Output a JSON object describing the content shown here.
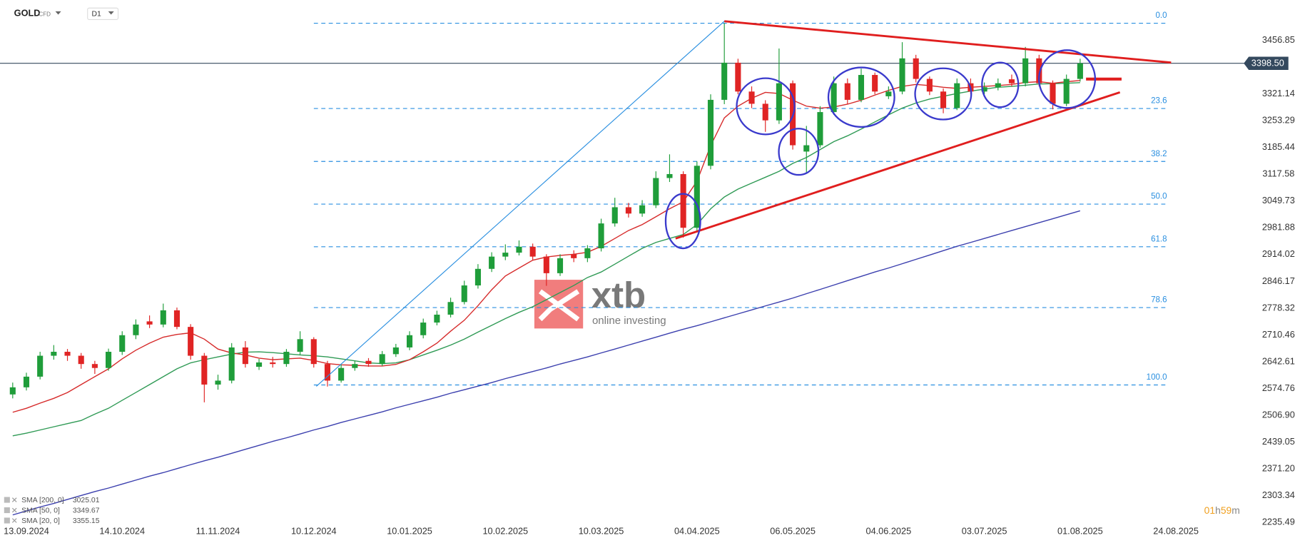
{
  "header": {
    "symbol": "GOLD",
    "instrument_type": "CFD",
    "timeframe": "D1"
  },
  "watermark": {
    "brand": "xtb",
    "tagline": "online investing"
  },
  "countdown": [
    "01",
    "h",
    "59",
    "m"
  ],
  "chart_data": {
    "type": "candlestick",
    "up_color": "#1f9d3a",
    "down_color": "#e02424",
    "ylim": [
      2208.3,
      3557.3
    ],
    "yticks": [
      3456.85,
      3321.14,
      3253.29,
      3185.44,
      3117.58,
      3049.73,
      2981.88,
      2914.02,
      2846.17,
      2778.32,
      2710.46,
      2642.61,
      2574.76,
      {
        "value": 2506.9,
        "label": "2506.90"
      },
      2439.05,
      {
        "value": 2371.2,
        "label": "2371.20"
      },
      2303.34,
      2235.49
    ],
    "last_price": {
      "value": 3398.5,
      "label": "3398.50"
    },
    "categories": [
      null,
      "13.09.2024",
      null,
      null,
      null,
      null,
      null,
      null,
      "14.10.2024",
      null,
      null,
      null,
      null,
      null,
      null,
      "11.11.2024",
      null,
      null,
      null,
      null,
      null,
      null,
      "10.12.2024",
      null,
      null,
      null,
      null,
      null,
      null,
      "10.01.2025",
      null,
      null,
      null,
      null,
      null,
      null,
      "10.02.2025",
      null,
      null,
      null,
      null,
      null,
      null,
      "10.03.2025",
      null,
      null,
      null,
      null,
      null,
      null,
      "04.04.2025",
      null,
      null,
      null,
      null,
      null,
      null,
      "06.05.2025",
      null,
      null,
      null,
      null,
      null,
      null,
      "04.06.2025",
      null,
      null,
      null,
      null,
      null,
      null,
      "03.07.2025",
      null,
      null,
      null,
      null,
      null,
      null,
      "01.08.2025",
      null,
      null,
      null,
      null,
      null,
      null,
      "24.08.2025",
      null
    ],
    "open": [
      2560,
      2578,
      2605,
      2658,
      2668,
      2658,
      2637,
      2627,
      2668,
      2710,
      2745,
      2737,
      2773,
      2731,
      2658,
      2585,
      2595,
      2679,
      2630,
      2641,
      2637,
      2668,
      2700,
      2637,
      2595,
      2627,
      2645,
      2637,
      2662,
      2679,
      2710,
      2742,
      2762,
      2794,
      2836,
      2878,
      2909,
      2919,
      2934,
      2909,
      2867,
      2915,
      2905,
      2930,
      2993,
      3034,
      3018,
      3039,
      3108,
      3118,
      2982,
      3139,
      3306,
      3400,
      3327,
      3296,
      3254,
      3348,
      3175,
      3191,
      3275,
      3348,
      3306,
      3369,
      3315,
      3327,
      3411,
      3359,
      3327,
      3285,
      3348,
      3327,
      3338,
      3358,
      3348,
      3411,
      3348,
      3296,
      3359,
      null,
      null,
      null,
      null,
      null,
      null,
      null,
      null
    ],
    "high": [
      2590,
      2615,
      2668,
      2685,
      2675,
      2665,
      2645,
      2676,
      2720,
      2750,
      2760,
      2790,
      2780,
      2738,
      2665,
      2610,
      2690,
      2695,
      2650,
      2655,
      2675,
      2720,
      2705,
      2645,
      2635,
      2645,
      2652,
      2670,
      2688,
      2720,
      2752,
      2772,
      2805,
      2848,
      2890,
      2920,
      2940,
      2950,
      2942,
      2915,
      2915,
      2925,
      2938,
      3005,
      3058,
      3045,
      3052,
      3125,
      3168,
      3125,
      3150,
      3320,
      3500,
      3410,
      3340,
      3305,
      3436,
      3355,
      3240,
      3290,
      3365,
      3360,
      3385,
      3375,
      3340,
      3452,
      3420,
      3365,
      3335,
      3360,
      3360,
      3350,
      3360,
      3370,
      3440,
      3420,
      3355,
      3370,
      3410,
      null,
      null,
      null,
      null,
      null,
      null,
      null,
      null
    ],
    "low": [
      2550,
      2570,
      2598,
      2648,
      2645,
      2625,
      2612,
      2620,
      2660,
      2700,
      2728,
      2730,
      2725,
      2648,
      2540,
      2572,
      2588,
      2628,
      2622,
      2628,
      2630,
      2660,
      2628,
      2580,
      2590,
      2620,
      2630,
      2632,
      2655,
      2672,
      2702,
      2735,
      2755,
      2788,
      2828,
      2870,
      2900,
      2912,
      2900,
      2835,
      2860,
      2895,
      2895,
      2922,
      2985,
      3008,
      3010,
      3032,
      3098,
      2957,
      2975,
      3130,
      3295,
      3320,
      3285,
      3225,
      3245,
      3180,
      3120,
      3185,
      3268,
      3295,
      3300,
      3320,
      3308,
      3320,
      3350,
      3318,
      3272,
      3280,
      3320,
      3320,
      3330,
      3340,
      3340,
      3340,
      3282,
      3290,
      3352,
      null,
      null,
      null,
      null,
      null,
      null,
      null,
      null
    ],
    "close": [
      2578,
      2605,
      2658,
      2668,
      2658,
      2637,
      2627,
      2668,
      2710,
      2737,
      2737,
      2773,
      2731,
      2658,
      2585,
      2595,
      2679,
      2637,
      2641,
      2637,
      2668,
      2700,
      2637,
      2595,
      2627,
      2637,
      2637,
      2662,
      2679,
      2710,
      2742,
      2762,
      2794,
      2836,
      2878,
      2909,
      2919,
      2934,
      2909,
      2867,
      2905,
      2905,
      2930,
      2993,
      3034,
      3018,
      3039,
      3108,
      3118,
      2982,
      3139,
      3306,
      3400,
      3327,
      3296,
      3254,
      3348,
      3191,
      3191,
      3275,
      3348,
      3306,
      3369,
      3327,
      3327,
      3411,
      3359,
      3327,
      3285,
      3348,
      3327,
      3338,
      3348,
      3348,
      3411,
      3348,
      3296,
      3359,
      3398.5,
      null,
      null,
      null,
      null,
      null,
      null,
      null,
      null
    ],
    "series": [
      {
        "name": "SMA [200, 0]",
        "color": "#3b3fae",
        "values": [
          2255,
          2265,
          2275,
          2284,
          2294,
          2304,
          2314,
          2323,
          2333,
          2343,
          2353,
          2362,
          2372,
          2382,
          2392,
          2401,
          2411,
          2421,
          2431,
          2441,
          2450,
          2460,
          2470,
          2479,
          2489,
          2498,
          2507,
          2516,
          2526,
          2535,
          2544,
          2553,
          2563,
          2572,
          2581,
          2590,
          2600,
          2609,
          2618,
          2627,
          2637,
          2646,
          2655,
          2665,
          2675,
          2685,
          2695,
          2705,
          2715,
          2725,
          2734,
          2744,
          2754,
          2764,
          2774,
          2784,
          2794,
          2804,
          2815,
          2826,
          2837,
          2848,
          2859,
          2870,
          2880,
          2891,
          2902,
          2913,
          2924,
          2935,
          2945,
          2955,
          2965,
          2975,
          2985,
          2995,
          3005,
          3015,
          3025.01,
          null,
          null,
          null,
          null,
          null,
          null,
          null,
          null
        ]
      },
      {
        "name": "SMA [50, 0]",
        "color": "#2f9a55",
        "values": [
          2455,
          2462,
          2470,
          2478,
          2486,
          2494,
          2510,
          2525,
          2545,
          2565,
          2585,
          2605,
          2625,
          2640,
          2648,
          2655,
          2662,
          2667,
          2668,
          2666,
          2663,
          2660,
          2658,
          2655,
          2650,
          2645,
          2640,
          2638,
          2640,
          2648,
          2660,
          2672,
          2685,
          2700,
          2718,
          2735,
          2752,
          2768,
          2782,
          2800,
          2818,
          2836,
          2856,
          2870,
          2890,
          2910,
          2930,
          2945,
          2955,
          2965,
          2990,
          3030,
          3060,
          3080,
          3095,
          3110,
          3125,
          3145,
          3160,
          3180,
          3200,
          3215,
          3232,
          3250,
          3268,
          3285,
          3298,
          3308,
          3315,
          3322,
          3328,
          3333,
          3338,
          3340,
          3343,
          3346,
          3347,
          3348,
          3349.67,
          null,
          null,
          null,
          null,
          null,
          null,
          null,
          null
        ]
      },
      {
        "name": "SMA [20, 0]",
        "color": "#d62a2a",
        "values": [
          2515,
          2525,
          2538,
          2550,
          2565,
          2585,
          2605,
          2625,
          2650,
          2672,
          2690,
          2705,
          2712,
          2716,
          2700,
          2675,
          2665,
          2660,
          2652,
          2648,
          2650,
          2652,
          2646,
          2638,
          2635,
          2634,
          2632,
          2632,
          2636,
          2648,
          2668,
          2690,
          2720,
          2748,
          2785,
          2825,
          2860,
          2880,
          2900,
          2908,
          2912,
          2915,
          2920,
          2935,
          2955,
          2975,
          2990,
          3010,
          3030,
          3048,
          3100,
          3190,
          3260,
          3290,
          3310,
          3325,
          3322,
          3305,
          3290,
          3285,
          3288,
          3295,
          3305,
          3318,
          3330,
          3340,
          3345,
          3342,
          3338,
          3335,
          3338,
          3340,
          3342,
          3345,
          3350,
          3352,
          3348,
          3352,
          3355.15,
          null,
          null,
          null,
          null,
          null,
          null,
          null,
          null
        ]
      }
    ],
    "fibonacci": [
      {
        "level": "0.0",
        "price": 3500
      },
      {
        "level": "23.6",
        "price": 3284
      },
      {
        "level": "38.2",
        "price": 3150
      },
      {
        "level": "50.0",
        "price": 3042
      },
      {
        "level": "61.8",
        "price": 2934
      },
      {
        "level": "78.6",
        "price": 2780
      },
      {
        "level": "100.0",
        "price": 2584
      }
    ]
  }
}
